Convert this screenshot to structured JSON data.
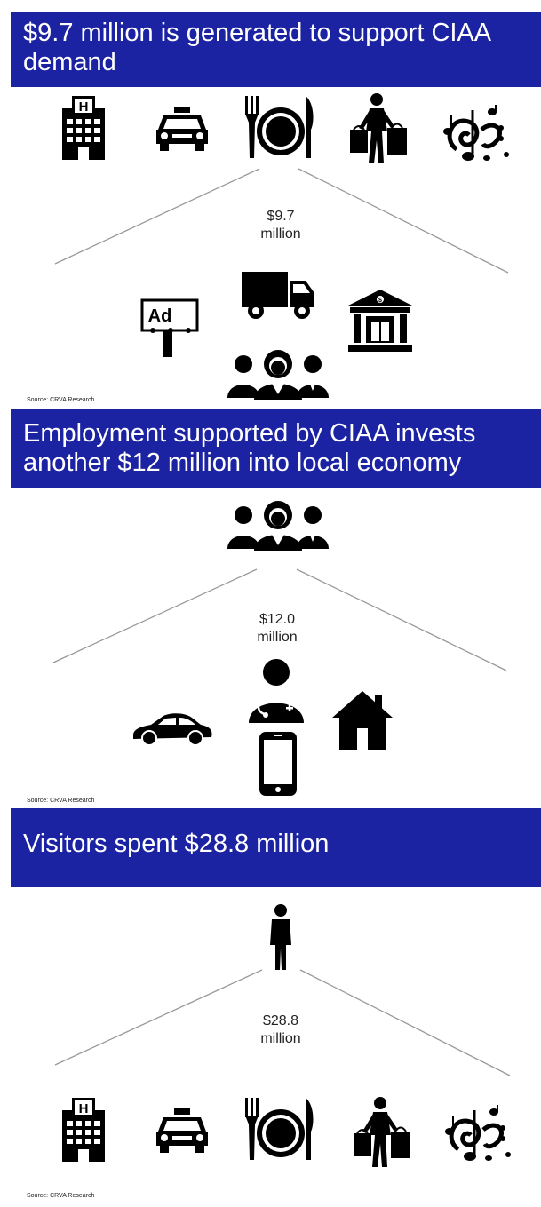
{
  "panels": [
    {
      "title": "$9.7 million is generated to support CIAA demand",
      "amount": "$9.7\nmillion",
      "source": "Source: CRVA Research",
      "top_icons": [
        "hotel-icon",
        "taxi-icon",
        "dining-icon",
        "shopping-icon",
        "music-icon"
      ],
      "bottom_icons": [
        "billboard-ad-icon",
        "delivery-truck-icon",
        "bank-icon",
        "people-group-icon"
      ],
      "billboard_text": "Ad"
    },
    {
      "title": "Employment supported by CIAA invests another $12 million into local economy",
      "amount": "$12.0\nmillion",
      "source": "Source: CRVA Research",
      "top_icons": [
        "people-group-icon"
      ],
      "bottom_icons": [
        "car-icon",
        "doctor-icon",
        "smartphone-icon",
        "house-icon"
      ]
    },
    {
      "title": "Visitors spent $28.8 million",
      "amount": "$28.8\nmillion",
      "source": "Source: CRVA Research",
      "top_icons": [
        "person-icon"
      ],
      "bottom_icons": [
        "hotel-icon",
        "taxi-icon",
        "dining-icon",
        "shopping-icon",
        "music-icon"
      ]
    }
  ],
  "colors": {
    "banner": "#1c23a3",
    "banner_text": "#ffffff",
    "icon": "#000000",
    "line": "#999999"
  }
}
